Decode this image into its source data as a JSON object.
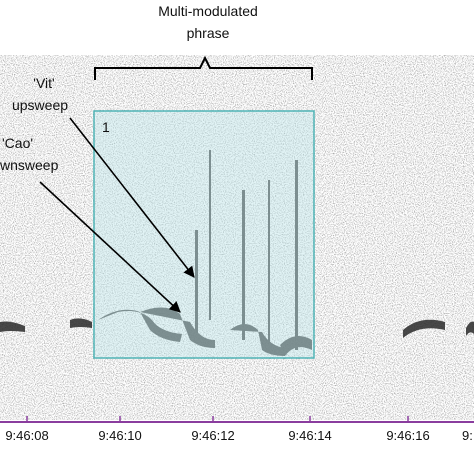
{
  "header": {
    "title_lines": [
      "Multi-modulated",
      "phrase"
    ]
  },
  "annotations": [
    {
      "lines": [
        "'Vit'",
        "upsweep"
      ]
    },
    {
      "lines": [
        "'Cao'",
        "wnsweep"
      ]
    }
  ],
  "box": {
    "label": "1"
  },
  "time_axis": {
    "labels": [
      "9:46:08",
      "9:46:10",
      "9:46:12",
      "9:46:14",
      "9:46:16",
      "9:"
    ]
  }
}
